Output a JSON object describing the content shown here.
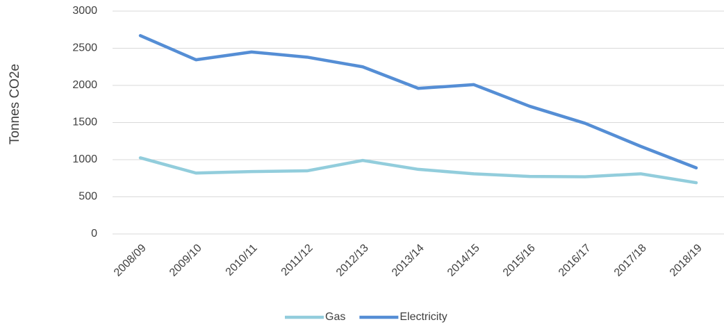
{
  "chart_data": {
    "type": "line",
    "y_label": "Tonnes CO2e",
    "categories": [
      "2008/09",
      "2009/10",
      "2010/11",
      "2011/12",
      "2012/13",
      "2013/14",
      "2014/15",
      "2015/16",
      "2016/17",
      "2017/18",
      "2018/19"
    ],
    "series": [
      {
        "name": "Gas",
        "color": "#92cddc",
        "values": [
          1025,
          820,
          840,
          850,
          990,
          870,
          810,
          775,
          770,
          810,
          690
        ]
      },
      {
        "name": "Electricity",
        "color": "#558ed5",
        "values": [
          2670,
          2345,
          2450,
          2380,
          2250,
          1960,
          2010,
          1720,
          1490,
          1180,
          890
        ]
      }
    ],
    "ylim": [
      0,
      3000
    ],
    "yticks": [
      0,
      500,
      1000,
      1500,
      2000,
      2500,
      3000
    ],
    "grid": true,
    "legend": "bottom"
  }
}
